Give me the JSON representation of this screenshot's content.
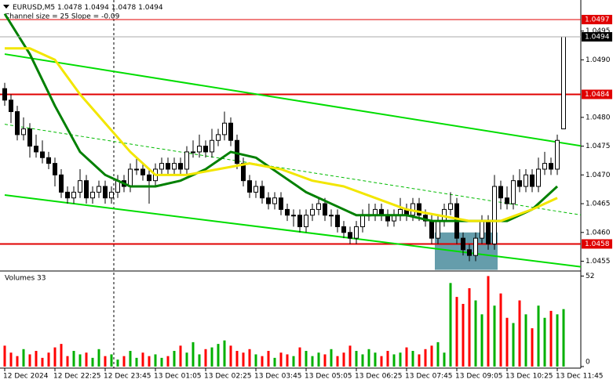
{
  "chart_data": {
    "type": "candlestick",
    "symbol": "EURUSD,M5",
    "subtitle": "Channel size = 25 Slope = -0.09",
    "ylim": [
      1.04533,
      1.05004
    ],
    "yticks": [
      1.0495,
      {
        "value": 1.049,
        "label": "1.0490"
      },
      {
        "value": 1.048,
        "label": "1.0480"
      },
      1.0475,
      {
        "value": 1.047,
        "label": "1.0470"
      },
      1.0465,
      {
        "value": 1.046,
        "label": "1.0460"
      },
      1.0455
    ],
    "xticks": [
      {
        "value": 0,
        "label": "12 Dec 2024"
      },
      {
        "value": 8,
        "label": "12 Dec 22:25"
      },
      {
        "value": 16,
        "label": "12 Dec 23:45"
      },
      {
        "value": 24,
        "label": "13 Dec 01:05"
      },
      {
        "value": 32,
        "label": "13 Dec 02:25"
      },
      {
        "value": 40,
        "label": "13 Dec 03:45"
      },
      {
        "value": 48,
        "label": "13 Dec 05:05"
      },
      {
        "value": 56,
        "label": "13 Dec 06:25"
      },
      {
        "value": 64,
        "label": "13 Dec 07:45"
      },
      {
        "value": 72,
        "label": "13 Dec 09:05"
      },
      {
        "value": 80,
        "label": "13 Dec 10:25"
      },
      {
        "value": 88,
        "label": "13 Dec 11:45"
      }
    ],
    "ohlc": [
      [
        1.0485,
        1.0486,
        1.0482,
        1.0483
      ],
      [
        1.0483,
        1.0484,
        1.0479,
        1.0481
      ],
      [
        1.0481,
        1.0482,
        1.0476,
        1.0477
      ],
      [
        1.0477,
        1.048,
        1.0476,
        1.0478
      ],
      [
        1.0478,
        1.0479,
        1.0473,
        1.0475
      ],
      [
        1.0475,
        1.0477,
        1.0473,
        1.0474
      ],
      [
        1.0474,
        1.0476,
        1.0472,
        1.0473
      ],
      [
        1.0473,
        1.0474,
        1.0471,
        1.0472
      ],
      [
        1.0472,
        1.0473,
        1.0468,
        1.047
      ],
      [
        1.047,
        1.0471,
        1.0466,
        1.0467
      ],
      [
        1.0467,
        1.0468,
        1.0465,
        1.0466
      ],
      [
        1.0466,
        1.0468,
        1.0465,
        1.0467
      ],
      [
        1.0467,
        1.0471,
        1.0466,
        1.0469
      ],
      [
        1.0469,
        1.047,
        1.0465,
        1.0466
      ],
      [
        1.0466,
        1.0468,
        1.0465,
        1.0467
      ],
      [
        1.0467,
        1.0469,
        1.0466,
        1.0468
      ],
      [
        1.0468,
        1.0469,
        1.0465,
        1.0466
      ],
      [
        1.0466,
        1.0468,
        1.0465,
        1.0467
      ],
      [
        1.0467,
        1.047,
        1.0466,
        1.0469
      ],
      [
        1.0469,
        1.047,
        1.0467,
        1.0468
      ],
      [
        1.0468,
        1.0472,
        1.0467,
        1.0471
      ],
      [
        1.0471,
        1.0473,
        1.047,
        1.0471
      ],
      [
        1.0471,
        1.0472,
        1.0469,
        1.047
      ],
      [
        1.047,
        1.0471,
        1.0465,
        1.0469
      ],
      [
        1.0469,
        1.0472,
        1.0468,
        1.0471
      ],
      [
        1.0471,
        1.0473,
        1.047,
        1.0472
      ],
      [
        1.0472,
        1.0473,
        1.047,
        1.0471
      ],
      [
        1.0471,
        1.0473,
        1.047,
        1.0472
      ],
      [
        1.0472,
        1.0473,
        1.047,
        1.0471
      ],
      [
        1.0471,
        1.0475,
        1.047,
        1.0474
      ],
      [
        1.0474,
        1.0476,
        1.0473,
        1.0474
      ],
      [
        1.0474,
        1.0477,
        1.0473,
        1.0475
      ],
      [
        1.0475,
        1.0476,
        1.0473,
        1.0474
      ],
      [
        1.0474,
        1.0478,
        1.0473,
        1.0476
      ],
      [
        1.0476,
        1.0478,
        1.0475,
        1.0477
      ],
      [
        1.0477,
        1.0481,
        1.0476,
        1.0479
      ],
      [
        1.0479,
        1.048,
        1.0475,
        1.0476
      ],
      [
        1.0476,
        1.0477,
        1.0471,
        1.0472
      ],
      [
        1.0472,
        1.0473,
        1.0468,
        1.0469
      ],
      [
        1.0469,
        1.047,
        1.0466,
        1.0467
      ],
      [
        1.0467,
        1.0469,
        1.0466,
        1.0468
      ],
      [
        1.0468,
        1.0469,
        1.0465,
        1.0466
      ],
      [
        1.0466,
        1.0467,
        1.0464,
        1.0465
      ],
      [
        1.0465,
        1.0467,
        1.0464,
        1.0466
      ],
      [
        1.0466,
        1.0467,
        1.0463,
        1.0464
      ],
      [
        1.0464,
        1.0465,
        1.0462,
        1.0463
      ],
      [
        1.0463,
        1.0464,
        1.0461,
        1.0463
      ],
      [
        1.0463,
        1.0464,
        1.046,
        1.0461
      ],
      [
        1.0461,
        1.0464,
        1.046,
        1.0463
      ],
      [
        1.0463,
        1.0465,
        1.0462,
        1.0464
      ],
      [
        1.0464,
        1.0466,
        1.0463,
        1.0465
      ],
      [
        1.0465,
        1.0466,
        1.0462,
        1.0463
      ],
      [
        1.0463,
        1.0464,
        1.0461,
        1.0463
      ],
      [
        1.0463,
        1.0464,
        1.046,
        1.0461
      ],
      [
        1.0461,
        1.0462,
        1.0459,
        1.046
      ],
      [
        1.046,
        1.0461,
        1.0458,
        1.0459
      ],
      [
        1.0459,
        1.0462,
        1.0458,
        1.0461
      ],
      [
        1.0461,
        1.0464,
        1.046,
        1.0463
      ],
      [
        1.0463,
        1.0465,
        1.0462,
        1.0463
      ],
      [
        1.0463,
        1.0465,
        1.0462,
        1.0464
      ],
      [
        1.0464,
        1.0465,
        1.0462,
        1.0463
      ],
      [
        1.0463,
        1.0464,
        1.0461,
        1.0462
      ],
      [
        1.0462,
        1.0464,
        1.0461,
        1.0463
      ],
      [
        1.0463,
        1.0466,
        1.0462,
        1.0464
      ],
      [
        1.0464,
        1.0465,
        1.0462,
        1.0463
      ],
      [
        1.0463,
        1.0466,
        1.0462,
        1.0465
      ],
      [
        1.0465,
        1.0466,
        1.0462,
        1.0463
      ],
      [
        1.0463,
        1.0464,
        1.0461,
        1.0462
      ],
      [
        1.0462,
        1.0463,
        1.0458,
        1.0459
      ],
      [
        1.0459,
        1.0463,
        1.0458,
        1.0462
      ],
      [
        1.0462,
        1.0465,
        1.0461,
        1.0464
      ],
      [
        1.0464,
        1.0467,
        1.0463,
        1.0465
      ],
      [
        1.0465,
        1.0466,
        1.0458,
        1.0459
      ],
      [
        1.0459,
        1.046,
        1.0456,
        1.0457
      ],
      [
        1.0457,
        1.0458,
        1.0455,
        1.0456
      ],
      [
        1.0456,
        1.046,
        1.0455,
        1.0459
      ],
      [
        1.0459,
        1.0463,
        1.0458,
        1.0462
      ],
      [
        1.0462,
        1.0463,
        1.0457,
        1.0458
      ],
      [
        1.0458,
        1.047,
        1.0457,
        1.0468
      ],
      [
        1.0468,
        1.0469,
        1.0464,
        1.0466
      ],
      [
        1.0466,
        1.0468,
        1.0464,
        1.0465
      ],
      [
        1.0465,
        1.047,
        1.0464,
        1.0469
      ],
      [
        1.0469,
        1.0471,
        1.0467,
        1.0468
      ],
      [
        1.0468,
        1.0471,
        1.0467,
        1.047
      ],
      [
        1.047,
        1.0471,
        1.0467,
        1.0468
      ],
      [
        1.0468,
        1.0473,
        1.0467,
        1.0471
      ],
      [
        1.0471,
        1.0474,
        1.047,
        1.0472
      ],
      [
        1.0472,
        1.0473,
        1.047,
        1.0471
      ],
      [
        1.0471,
        1.0477,
        1.047,
        1.0476
      ],
      [
        1.0478,
        1.0494,
        1.0478,
        1.0494
      ]
    ],
    "series": [
      {
        "color": "#008000",
        "x": [
          0,
          4,
          8,
          12,
          16,
          20,
          24,
          28,
          32,
          36,
          40,
          44,
          48,
          52,
          56,
          60,
          64,
          68,
          72,
          76,
          80,
          84,
          88
        ],
        "values": [
          1.0498,
          1.0491,
          1.0482,
          1.0474,
          1.047,
          1.0468,
          1.0468,
          1.0469,
          1.0471,
          1.0474,
          1.0473,
          1.047,
          1.0467,
          1.0465,
          1.0463,
          1.0463,
          1.0463,
          1.0462,
          1.0462,
          1.0462,
          1.0462,
          1.0464,
          1.0468
        ]
      },
      {
        "color": "#f2e600",
        "x": [
          0,
          4,
          8,
          12,
          16,
          20,
          24,
          29,
          34,
          39,
          44,
          49,
          54,
          59,
          64,
          69,
          74,
          79,
          84,
          88
        ],
        "values": [
          1.0492,
          1.0492,
          1.049,
          1.0484,
          1.0479,
          1.0474,
          1.047,
          1.047,
          1.0471,
          1.0472,
          1.0471,
          1.0469,
          1.0468,
          1.0466,
          1.0464,
          1.0463,
          1.0462,
          1.0462,
          1.0464,
          1.0466
        ]
      }
    ],
    "trendlines": [
      {
        "color": "#00dd00",
        "x": [
          0,
          92
        ],
        "values": [
          1.0491,
          1.0475
        ]
      },
      {
        "color": "#00dd00",
        "x": [
          0,
          92
        ],
        "values": [
          1.04665,
          1.0454
        ]
      },
      {
        "color": "#00bb00",
        "dashed": true,
        "x": [
          0,
          92
        ],
        "values": [
          1.04788,
          1.0463
        ]
      }
    ],
    "levels": [
      {
        "value": 1.0497,
        "color": "#e00000"
      },
      {
        "value": 1.0484,
        "color": "#e00000"
      },
      {
        "value": 1.0458,
        "color": "#e00000"
      }
    ],
    "zone": {
      "color": "#4a8c9c",
      "x": [
        69,
        78
      ],
      "values": [
        1.046,
        1.04535
      ]
    },
    "up_color": "#00b000",
    "down_color": "#ff0000",
    "volume": {
      "title": "Volumes 33",
      "ylim": [
        0,
        54
      ],
      "yticks": [
        52,
        0
      ],
      "values": [
        12,
        8,
        6,
        10,
        7,
        9,
        5,
        8,
        11,
        13,
        6,
        9,
        7,
        8,
        5,
        10,
        6,
        7,
        4,
        6,
        9,
        5,
        8,
        6,
        7,
        5,
        6,
        9,
        12,
        8,
        14,
        7,
        10,
        11,
        13,
        15,
        12,
        9,
        8,
        10,
        7,
        6,
        9,
        5,
        8,
        7,
        6,
        11,
        9,
        6,
        8,
        7,
        10,
        6,
        8,
        12,
        9,
        7,
        10,
        8,
        6,
        9,
        7,
        8,
        11,
        9,
        7,
        10,
        12,
        14,
        8,
        48,
        40,
        36,
        45,
        38,
        30,
        52,
        35,
        42,
        28,
        25,
        38,
        30,
        22,
        35,
        28,
        32,
        30,
        33
      ]
    }
  }
}
